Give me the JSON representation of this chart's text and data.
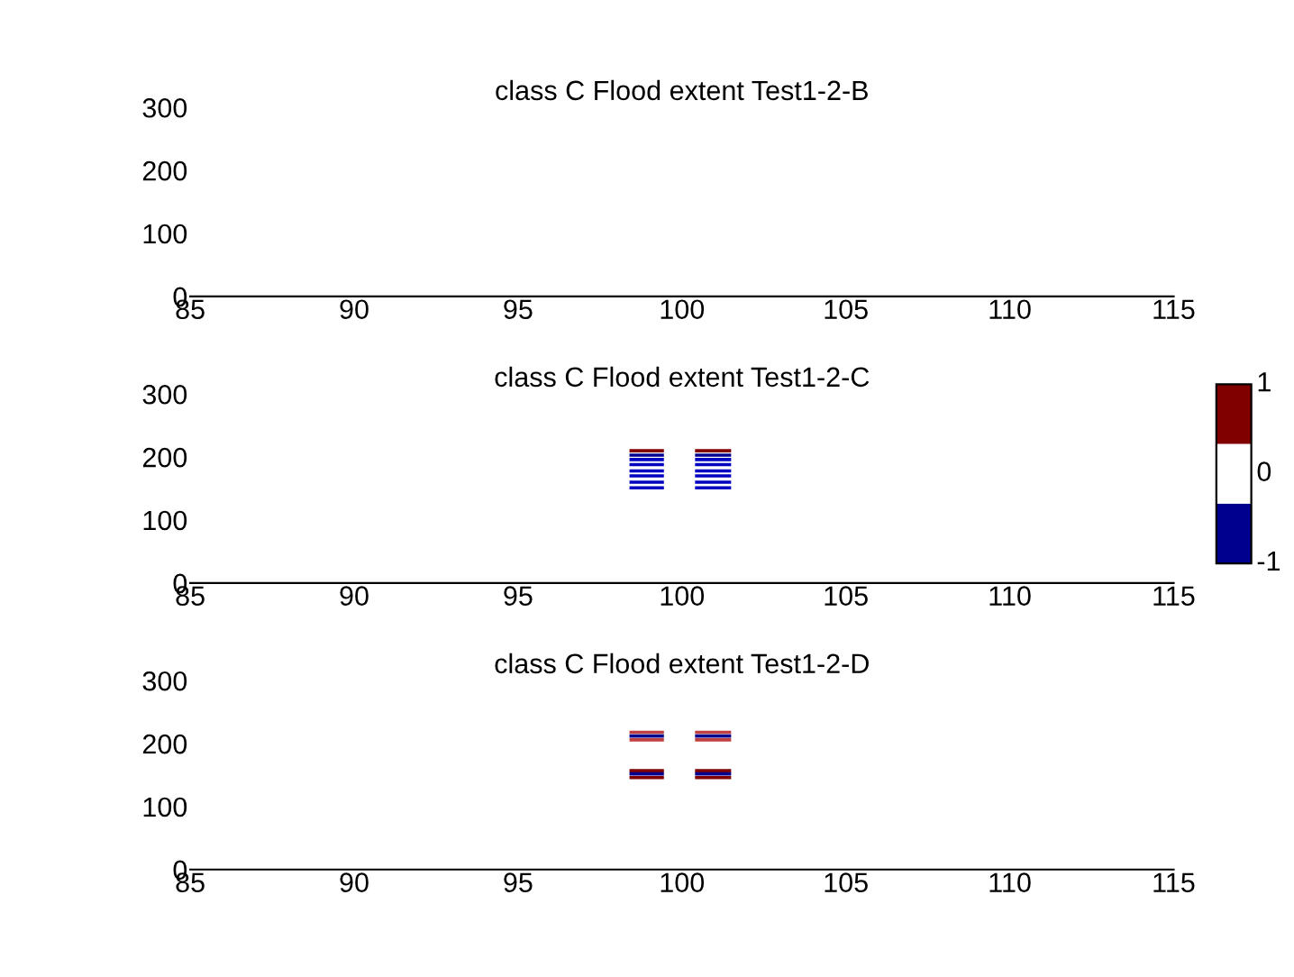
{
  "chart_data": [
    {
      "type": "line",
      "title": "class C Flood extent Test1-2-B",
      "xlim": [
        85,
        115
      ],
      "ylim": [
        0,
        300
      ],
      "xticks": [
        85,
        90,
        95,
        100,
        105,
        110,
        115
      ],
      "yticks": [
        0,
        100,
        200,
        300
      ]
    },
    {
      "type": "line",
      "title": "class C Flood extent Test1-2-C",
      "xlim": [
        85,
        115
      ],
      "ylim": [
        0,
        300
      ],
      "xticks": [
        85,
        90,
        95,
        100,
        105,
        110,
        115
      ],
      "yticks": [
        0,
        100,
        200,
        300
      ],
      "annotations": [
        "1",
        "0",
        "-1"
      ],
      "colors": [
        "#00008f",
        "#ffffff",
        "#800000"
      ],
      "series": [
        {
          "color": "#800000",
          "x": [
            98.4,
            99.45
          ],
          "values": [
            210,
            210
          ]
        },
        {
          "color": "#00008f",
          "x": [
            98.4,
            99.45
          ],
          "values": [
            203,
            203
          ]
        },
        {
          "color": "#0000c0",
          "x": [
            98.4,
            99.45
          ],
          "values": [
            196,
            196
          ]
        },
        {
          "color": "#0000c0",
          "x": [
            98.4,
            99.45
          ],
          "values": [
            188,
            188
          ]
        },
        {
          "color": "#0000c0",
          "x": [
            98.4,
            99.45
          ],
          "values": [
            178,
            178
          ]
        },
        {
          "color": "#0000c0",
          "x": [
            98.4,
            99.45
          ],
          "values": [
            170,
            170
          ]
        },
        {
          "color": "#0000c0",
          "x": [
            98.4,
            99.45
          ],
          "values": [
            160,
            160
          ]
        },
        {
          "color": "#0000c0",
          "x": [
            98.4,
            99.45
          ],
          "values": [
            151,
            151
          ]
        },
        {
          "color": "#800000",
          "x": [
            100.4,
            101.5
          ],
          "values": [
            210,
            210
          ]
        },
        {
          "color": "#00008f",
          "x": [
            100.4,
            101.5
          ],
          "values": [
            203,
            203
          ]
        },
        {
          "color": "#0000c0",
          "x": [
            100.4,
            101.5
          ],
          "values": [
            196,
            196
          ]
        },
        {
          "color": "#0000c0",
          "x": [
            100.4,
            101.5
          ],
          "values": [
            188,
            188
          ]
        },
        {
          "color": "#0000c0",
          "x": [
            100.4,
            101.5
          ],
          "values": [
            178,
            178
          ]
        },
        {
          "color": "#0000c0",
          "x": [
            100.4,
            101.5
          ],
          "values": [
            170,
            170
          ]
        },
        {
          "color": "#0000c0",
          "x": [
            100.4,
            101.5
          ],
          "values": [
            160,
            160
          ]
        },
        {
          "color": "#0000c0",
          "x": [
            100.4,
            101.5
          ],
          "values": [
            151,
            151
          ]
        }
      ]
    },
    {
      "type": "line",
      "title": "class C Flood extent Test1-2-D",
      "xlim": [
        85,
        115
      ],
      "ylim": [
        0,
        300
      ],
      "xticks": [
        85,
        90,
        95,
        100,
        105,
        110,
        115
      ],
      "yticks": [
        0,
        100,
        200,
        300
      ],
      "series": [
        {
          "color": "#c04040",
          "x": [
            98.4,
            99.45
          ],
          "values": [
            218,
            218
          ]
        },
        {
          "color": "#00008f",
          "x": [
            98.4,
            99.45
          ],
          "values": [
            212,
            212
          ]
        },
        {
          "color": "#c04040",
          "x": [
            98.4,
            99.45
          ],
          "values": [
            206,
            206
          ]
        },
        {
          "color": "#800000",
          "x": [
            98.4,
            99.45
          ],
          "values": [
            157,
            157
          ]
        },
        {
          "color": "#00008f",
          "x": [
            98.4,
            99.45
          ],
          "values": [
            152,
            152
          ]
        },
        {
          "color": "#800000",
          "x": [
            98.4,
            99.45
          ],
          "values": [
            146,
            146
          ]
        },
        {
          "color": "#c04040",
          "x": [
            100.4,
            101.5
          ],
          "values": [
            218,
            218
          ]
        },
        {
          "color": "#00008f",
          "x": [
            100.4,
            101.5
          ],
          "values": [
            212,
            212
          ]
        },
        {
          "color": "#c04040",
          "x": [
            100.4,
            101.5
          ],
          "values": [
            206,
            206
          ]
        },
        {
          "color": "#800000",
          "x": [
            100.4,
            101.5
          ],
          "values": [
            157,
            157
          ]
        },
        {
          "color": "#00008f",
          "x": [
            100.4,
            101.5
          ],
          "values": [
            152,
            152
          ]
        },
        {
          "color": "#800000",
          "x": [
            100.4,
            101.5
          ],
          "values": [
            146,
            146
          ]
        }
      ]
    }
  ]
}
